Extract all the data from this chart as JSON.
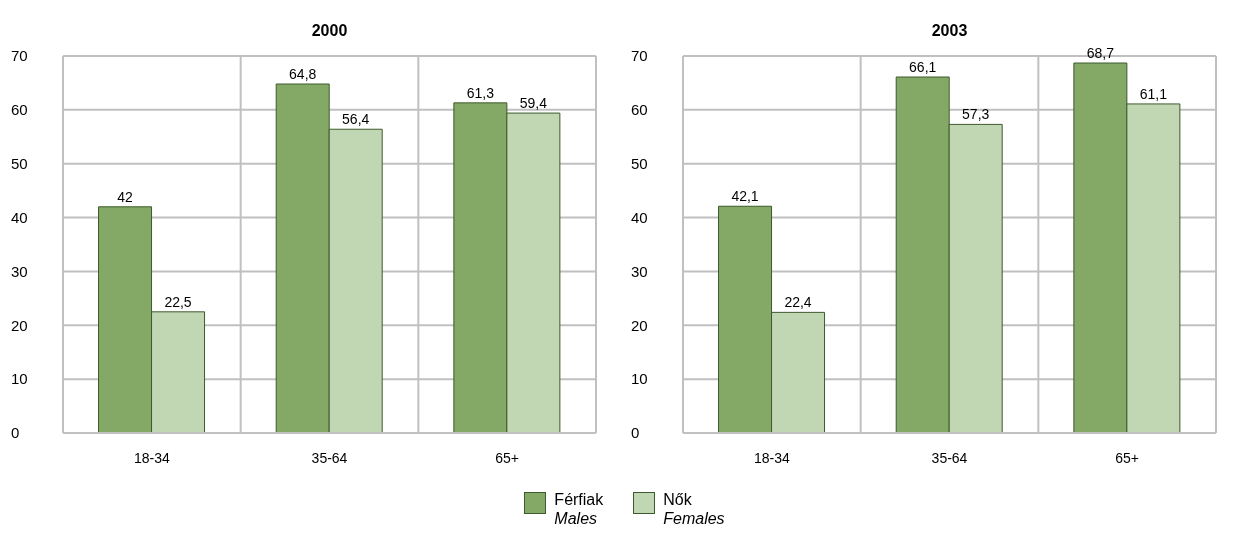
{
  "chart_data": [
    {
      "type": "bar",
      "title": "2000",
      "categories": [
        "18-34",
        "35-64",
        "65+"
      ],
      "series": [
        {
          "name": "Férfiak\nMales",
          "color": "#84a866",
          "values": [
            42,
            64.8,
            61.3
          ],
          "value_labels": [
            "42",
            "64,8",
            "61,3"
          ]
        },
        {
          "name": "Nők\nFemales",
          "color": "#c1d6b3",
          "values": [
            22.5,
            56.4,
            59.4
          ],
          "value_labels": [
            "22,5",
            "56,4",
            "59,4"
          ]
        }
      ],
      "ylim": [
        0,
        70
      ],
      "yticks": [
        0,
        10,
        20,
        30,
        40,
        50,
        60,
        70
      ],
      "grid": true,
      "legend": "bottom"
    },
    {
      "type": "bar",
      "title": "2003",
      "categories": [
        "18-34",
        "35-64",
        "65+"
      ],
      "series": [
        {
          "color": "#84a866",
          "values": [
            42.1,
            66.1,
            68.7
          ],
          "value_labels": [
            "42,1",
            "66,1",
            "68,7"
          ]
        },
        {
          "color": "#c1d6b3",
          "values": [
            22.4,
            57.3,
            61.1
          ],
          "value_labels": [
            "22,4",
            "57,3",
            "61,1"
          ]
        }
      ],
      "ylim": [
        0,
        70
      ],
      "yticks": [
        0,
        10,
        20,
        30,
        40,
        50,
        60,
        70
      ],
      "grid": true
    }
  ]
}
